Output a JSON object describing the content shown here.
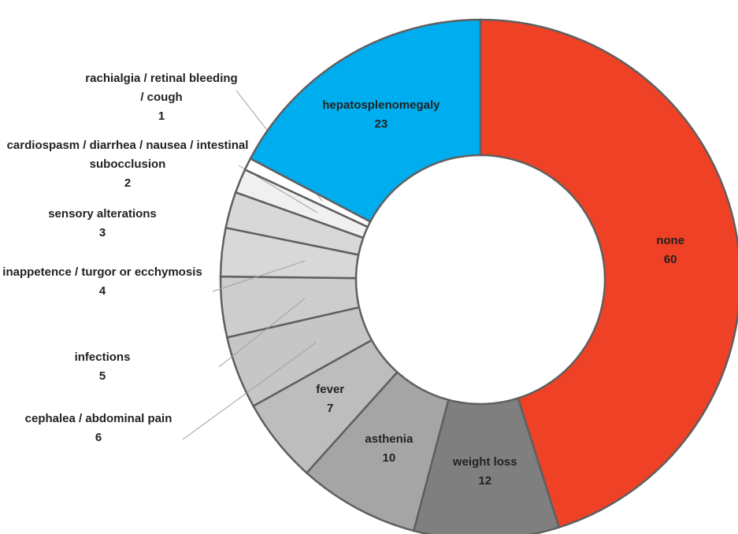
{
  "chart_data": {
    "type": "donut",
    "categories": [
      "none",
      "weight loss",
      "asthenia",
      "fever",
      "cephalea / abdominal pain",
      "infections",
      "inappetence / turgor or ecchymosis",
      "sensory alterations",
      "cardiospasm / diarrhea / nausea / intestinal subocclusion",
      "rachialgia / retinal bleeding / cough",
      "hepatosplenomegaly"
    ],
    "values": [
      60,
      12,
      10,
      7,
      6,
      5,
      4,
      3,
      2,
      1,
      23
    ],
    "colors": [
      "#ef4125",
      "#7f7f7f",
      "#a5a5a5",
      "#bdbdbd",
      "#c6c6c6",
      "#cdcdcd",
      "#d8d8d8",
      "#d8d8d8",
      "#f0f0f0",
      "#ffffff",
      "#00aeef"
    ]
  }
}
